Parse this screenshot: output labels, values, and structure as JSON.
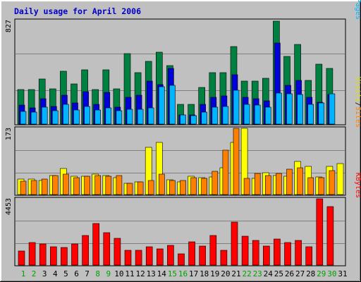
{
  "chart_data": [
    {
      "type": "bar",
      "title": "Daily usage for April 2006",
      "categories": [
        "1",
        "2",
        "3",
        "4",
        "5",
        "6",
        "7",
        "8",
        "9",
        "10",
        "11",
        "12",
        "13",
        "14",
        "15",
        "16",
        "17",
        "18",
        "19",
        "20",
        "21",
        "22",
        "23",
        "24",
        "25",
        "26",
        "27",
        "28",
        "29",
        "30",
        "31"
      ],
      "weekend_days": [
        "1",
        "2",
        "8",
        "9",
        "15",
        "16",
        "22",
        "23",
        "29",
        "30"
      ],
      "ymax_label": "827",
      "ylim": [
        0,
        827
      ],
      "series": [
        {
          "name": "Hits",
          "color": "#008040",
          "values": [
            275,
            275,
            360,
            280,
            420,
            320,
            430,
            275,
            430,
            280,
            560,
            410,
            500,
            570,
            465,
            155,
            155,
            290,
            410,
            410,
            615,
            340,
            340,
            365,
            815,
            535,
            630,
            345,
            475,
            440,
            0
          ]
        },
        {
          "name": "Files",
          "color": "#0000d8",
          "values": [
            150,
            130,
            200,
            140,
            230,
            165,
            255,
            155,
            250,
            135,
            215,
            230,
            340,
            315,
            440,
            75,
            75,
            155,
            210,
            225,
            390,
            215,
            200,
            185,
            640,
            310,
            345,
            215,
            175,
            235,
            0
          ]
        },
        {
          "name": "Pages",
          "color": "#00b4ff",
          "values": [
            100,
            95,
            135,
            105,
            155,
            110,
            140,
            110,
            130,
            105,
            120,
            115,
            130,
            295,
            310,
            70,
            65,
            95,
            135,
            140,
            270,
            155,
            150,
            135,
            245,
            240,
            235,
            155,
            170,
            240,
            0
          ]
        }
      ]
    },
    {
      "type": "bar",
      "ymax_label": "173",
      "ylim": [
        0,
        173
      ],
      "series": [
        {
          "name": "Visits",
          "color": "#ffff00",
          "values": [
            40,
            40,
            37,
            50,
            68,
            48,
            47,
            53,
            50,
            43,
            30,
            32,
            122,
            135,
            38,
            33,
            48,
            43,
            45,
            70,
            135,
            171,
            41,
            57,
            50,
            48,
            85,
            73,
            45,
            73,
            81
          ]
        },
        {
          "name": "Sites",
          "color": "#ff8000",
          "values": [
            35,
            37,
            40,
            50,
            52,
            44,
            48,
            50,
            47,
            50,
            29,
            33,
            36,
            52,
            37,
            36,
            43,
            42,
            60,
            114,
            171,
            42,
            54,
            50,
            54,
            65,
            70,
            43,
            43,
            62,
            0
          ]
        }
      ]
    },
    {
      "type": "bar",
      "ymax_label": "4453",
      "ylim": [
        0,
        4453
      ],
      "series": [
        {
          "name": "KBytes",
          "color": "#ff0000",
          "values": [
            920,
            1480,
            1400,
            1240,
            1170,
            1400,
            1960,
            2780,
            2150,
            1780,
            990,
            990,
            1200,
            1060,
            1320,
            750,
            1560,
            1280,
            1950,
            990,
            2860,
            1920,
            1620,
            1260,
            1720,
            1480,
            1620,
            1210,
            4390,
            3890,
            0
          ]
        }
      ]
    }
  ],
  "legend": {
    "top": [
      {
        "text": "Hits",
        "color": "#008040"
      },
      {
        "text": "/",
        "color": "#000000"
      },
      {
        "text": "Files",
        "color": "#0000d8"
      },
      {
        "text": "/",
        "color": "#000000"
      },
      {
        "text": "Pages",
        "color": "#00b4ff"
      }
    ],
    "middle": [
      {
        "text": "Visits",
        "color": "#dcdc00"
      },
      {
        "text": "/",
        "color": "#000000"
      },
      {
        "text": "Sites",
        "color": "#ff8000"
      }
    ],
    "bottom": [
      {
        "text": "KBytes",
        "color": "#ff0000"
      }
    ]
  },
  "colors": {
    "title": "#0000c8",
    "weekday_label": "#000000",
    "weekend_label": "#00a000",
    "background": "#c0c0c0",
    "plot_background": "#c0c0c0",
    "grid": "#808080"
  }
}
